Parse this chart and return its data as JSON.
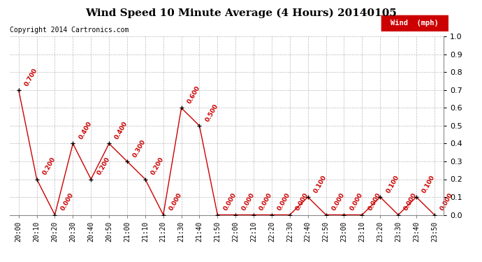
{
  "title": "Wind Speed 10 Minute Average (4 Hours) 20140105",
  "copyright": "Copyright 2014 Cartronics.com",
  "legend_label": "Wind  (mph)",
  "x_labels": [
    "20:00",
    "20:10",
    "20:20",
    "20:30",
    "20:40",
    "20:50",
    "21:00",
    "21:10",
    "21:20",
    "21:30",
    "21:40",
    "21:50",
    "22:00",
    "22:10",
    "22:20",
    "22:30",
    "22:40",
    "22:50",
    "23:00",
    "23:10",
    "23:20",
    "23:30",
    "23:40",
    "23:50"
  ],
  "y_values": [
    0.7,
    0.2,
    0.0,
    0.4,
    0.2,
    0.4,
    0.3,
    0.2,
    0.0,
    0.6,
    0.5,
    0.0,
    0.0,
    0.0,
    0.0,
    0.0,
    0.1,
    0.0,
    0.0,
    0.0,
    0.1,
    0.0,
    0.1,
    0.0
  ],
  "y_ticks": [
    0.0,
    0.1,
    0.2,
    0.3,
    0.4,
    0.5,
    0.6,
    0.7,
    0.8,
    0.9,
    1.0
  ],
  "ylim": [
    0.0,
    1.0
  ],
  "line_color": "#cc0000",
  "marker_color": "black",
  "legend_bg": "#cc0000",
  "legend_text_color": "white",
  "title_fontsize": 11,
  "copyright_fontsize": 7,
  "annotation_fontsize": 6.5,
  "bg_color": "white",
  "grid_color": "#bbbbbb",
  "tick_label_fontsize": 7,
  "right_ytick_fontsize": 8
}
